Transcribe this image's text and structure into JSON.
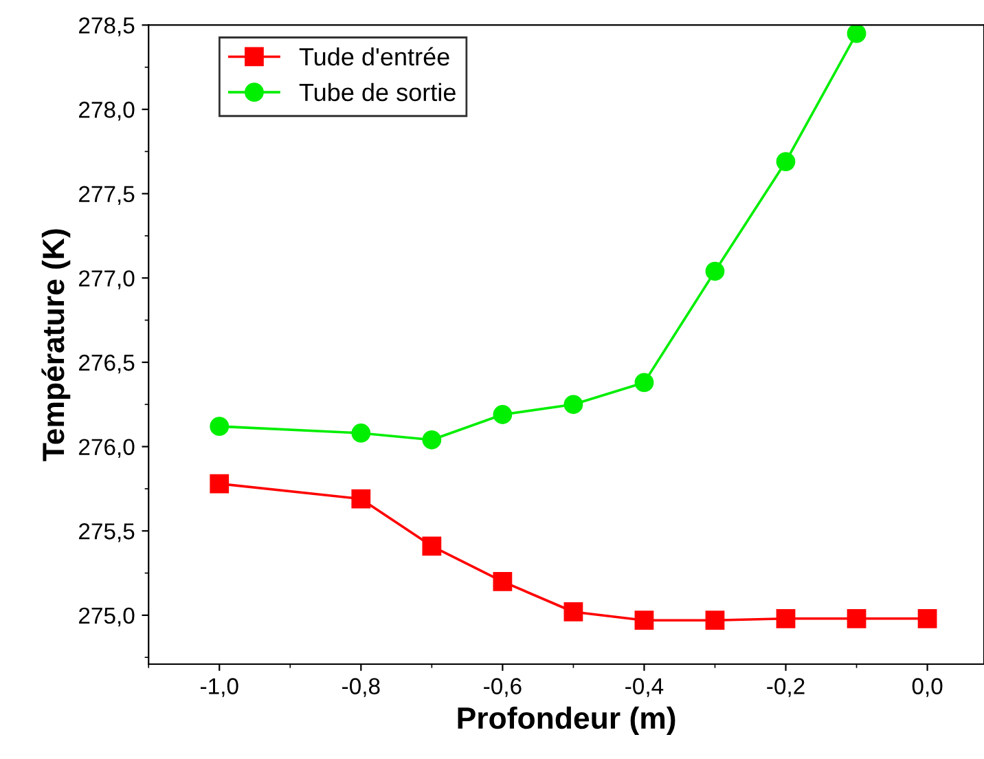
{
  "chart_data": {
    "type": "line",
    "xlabel": "Profondeur (m)",
    "ylabel": "Température (K)",
    "xlim": [
      -1.1,
      0.08
    ],
    "ylim": [
      274.71,
      278.5
    ],
    "xticks": [
      {
        "value": -1.0,
        "label": "-1,0"
      },
      {
        "value": -0.8,
        "label": "-0,8"
      },
      {
        "value": -0.6,
        "label": "-0,6"
      },
      {
        "value": -0.4,
        "label": "-0,4"
      },
      {
        "value": -0.2,
        "label": "-0,2"
      },
      {
        "value": 0.0,
        "label": "0,0"
      }
    ],
    "yticks": [
      {
        "value": 275.0,
        "label": "275,0"
      },
      {
        "value": 275.5,
        "label": "275,5"
      },
      {
        "value": 276.0,
        "label": "276,0"
      },
      {
        "value": 276.5,
        "label": "276,5"
      },
      {
        "value": 277.0,
        "label": "277,0"
      },
      {
        "value": 277.5,
        "label": "277,5"
      },
      {
        "value": 278.0,
        "label": "278,0"
      },
      {
        "value": 278.5,
        "label": "278,5"
      }
    ],
    "series": [
      {
        "name": "Tude d'entrée",
        "color": "#ff0000",
        "marker": "square",
        "x": [
          -1.0,
          -0.8,
          -0.7,
          -0.6,
          -0.5,
          -0.4,
          -0.3,
          -0.2,
          -0.1,
          0.0
        ],
        "values": [
          275.78,
          275.69,
          275.41,
          275.2,
          275.02,
          274.97,
          274.97,
          274.98,
          274.98,
          274.98
        ]
      },
      {
        "name": "Tube de sortie",
        "color": "#00ee00",
        "marker": "circle",
        "x": [
          -1.0,
          -0.8,
          -0.7,
          -0.6,
          -0.5,
          -0.4,
          -0.3,
          -0.2,
          -0.1
        ],
        "values": [
          276.12,
          276.08,
          276.04,
          276.19,
          276.25,
          276.38,
          277.04,
          277.69,
          278.45
        ]
      }
    ],
    "legend": "top left",
    "grid": false,
    "line_style": "solid"
  }
}
